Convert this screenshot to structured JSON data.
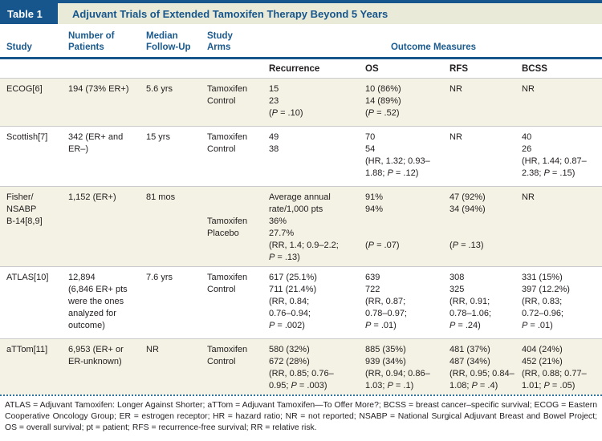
{
  "colors": {
    "navy": "#16568c",
    "header_text": "#1a5a8e",
    "title_strip_bg": "#e9ead8",
    "shaded_row_bg": "#f3f2e4",
    "row_divider": "#cbcbcb",
    "dotted_rule": "#2e76a0",
    "body_text": "#221e1f"
  },
  "table": {
    "label": "Table 1",
    "title": "Adjuvant Trials of Extended Tamoxifen Therapy Beyond 5 Years",
    "column_headers": [
      [
        "Study"
      ],
      [
        "Number of",
        "Patients"
      ],
      [
        "Median",
        "Follow-Up"
      ],
      [
        "Study",
        "Arms"
      ]
    ],
    "outcome_group_header": "Outcome Measures",
    "outcome_columns": [
      "Recurrence",
      "OS",
      "RFS",
      "BCSS"
    ],
    "rows": [
      {
        "cells": [
          [
            "ECOG[6]"
          ],
          [
            "194 (73% ER+)"
          ],
          [
            "5.6 yrs"
          ],
          [
            "Tamoxifen",
            "Control"
          ],
          [
            "15",
            "23",
            "(P = .10)"
          ],
          [
            "10 (86%)",
            "14 (89%)",
            "(P = .52)"
          ],
          [
            "NR"
          ],
          [
            "NR"
          ]
        ]
      },
      {
        "cells": [
          [
            "Scottish[7]"
          ],
          [
            "342 (ER+ and",
            "ER–)"
          ],
          [
            "15 yrs"
          ],
          [
            "Tamoxifen",
            "Control"
          ],
          [
            "49",
            "38"
          ],
          [
            "70",
            "54",
            "(HR, 1.32; 0.93–",
            "1.88; P = .12)"
          ],
          [
            "NR"
          ],
          [
            "40",
            "26",
            "(HR, 1.44; 0.87–",
            "2.38; P = .15)"
          ]
        ]
      },
      {
        "cells": [
          [
            "Fisher/",
            "NSABP",
            "B-14[8,9]"
          ],
          [
            "1,152 (ER+)"
          ],
          [
            "81 mos"
          ],
          [
            "",
            "",
            "Tamoxifen",
            "Placebo"
          ],
          [
            "Average annual",
            "rate/1,000 pts",
            "36%",
            "27.7%",
            "(RR, 1.4; 0.9–2.2;",
            "P = .13)"
          ],
          [
            "91%",
            "94%",
            "",
            "",
            "(P = .07)"
          ],
          [
            "47 (92%)",
            "34 (94%)",
            "",
            "",
            "(P = .13)"
          ],
          [
            "NR"
          ]
        ]
      },
      {
        "cells": [
          [
            "ATLAS[10]"
          ],
          [
            "12,894",
            "(6,846 ER+ pts",
            "were the ones",
            "analyzed for",
            "outcome)"
          ],
          [
            "7.6 yrs"
          ],
          [
            "Tamoxifen",
            "Control"
          ],
          [
            "617 (25.1%)",
            "711 (21.4%)",
            "(RR, 0.84;",
            "0.76–0.94;",
            "P = .002)"
          ],
          [
            "639",
            "722",
            "(RR, 0.87;",
            "0.78–0.97;",
            "P = .01)"
          ],
          [
            "308",
            "325",
            "(RR, 0.91;",
            "0.78–1.06;",
            "P = .24)"
          ],
          [
            "331 (15%)",
            "397 (12.2%)",
            "(RR, 0.83;",
            "0.72–0.96;",
            "P = .01)"
          ]
        ]
      },
      {
        "cells": [
          [
            "aTTom[11]"
          ],
          [
            "6,953 (ER+ or",
            "ER-unknown)"
          ],
          [
            "NR"
          ],
          [
            "Tamoxifen",
            "Control"
          ],
          [
            "580 (32%)",
            "672 (28%)",
            "(RR, 0.85; 0.76–",
            "0.95; P = .003)"
          ],
          [
            "885 (35%)",
            "939 (34%)",
            "(RR, 0.94; 0.86–",
            "1.03; P = .1)"
          ],
          [
            "481 (37%)",
            "487 (34%)",
            "(RR, 0.95; 0.84–",
            "1.08; P = .4)"
          ],
          [
            "404 (24%)",
            "452 (21%)",
            "(RR, 0.88; 0.77–",
            "1.01; P = .05)"
          ]
        ]
      }
    ],
    "footnote": "ATLAS = Adjuvant Tamoxifen: Longer Against Shorter; aTTom = Adjuvant Tamoxifen—To Offer More?; BCSS = breast cancer–specific survival; ECOG = Eastern Cooperative Oncology Group; ER = estrogen receptor; HR = hazard ratio; NR = not reported; NSABP = National Surgical Adjuvant Breast and Bowel Project; OS = overall survival; pt = patient; RFS = recurrence-free survival; RR = relative risk."
  }
}
